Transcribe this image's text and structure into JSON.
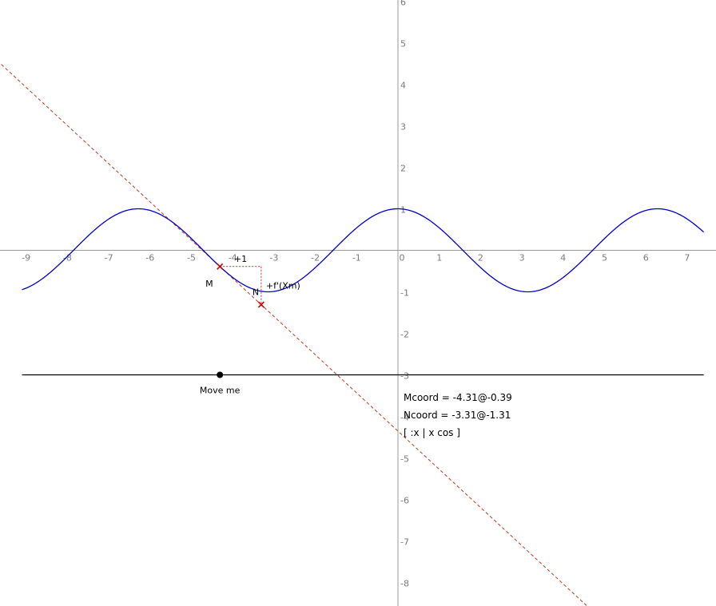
{
  "chart_data": {
    "type": "line",
    "function_label": "[ :x | x cos ]",
    "xlim": [
      -9.6,
      7.4
    ],
    "ylim": [
      -8.4,
      6.1
    ],
    "x_ticks": [
      -9,
      -8,
      -7,
      -6,
      -5,
      -4,
      -3,
      -2,
      -1,
      0,
      1,
      2,
      3,
      4,
      5,
      6,
      7
    ],
    "y_ticks": [
      -8,
      -7,
      -6,
      -5,
      -4,
      -3,
      -2,
      -1,
      0,
      1,
      2,
      3,
      4,
      5,
      6
    ],
    "curve": {
      "function": "cos",
      "amplitude": 1.0,
      "x_range": [
        -9.1,
        7.4
      ],
      "color": "#0000cc"
    },
    "tangent": {
      "point": [
        -4.31,
        -0.39
      ],
      "slope": -0.92,
      "color": "#c0391b",
      "style": "dashed"
    },
    "points": [
      {
        "name": "M",
        "x": -4.31,
        "y": -0.39,
        "color": "#cc0000"
      },
      {
        "name": "N",
        "x": -3.31,
        "y": -1.31,
        "color": "#cc0000"
      }
    ],
    "step_labels": {
      "dx": "+1",
      "dy": "+f'(Xm)"
    },
    "slider": {
      "y": -3.0,
      "x_range": [
        -9.1,
        7.4
      ],
      "handle_x": -4.31,
      "label": "Move me",
      "color": "#000000"
    },
    "readouts": {
      "mcoord": "Mcoord = -4.31@-0.39",
      "ncoord": "Ncoord = -3.31@-1.31"
    },
    "grid": false
  }
}
